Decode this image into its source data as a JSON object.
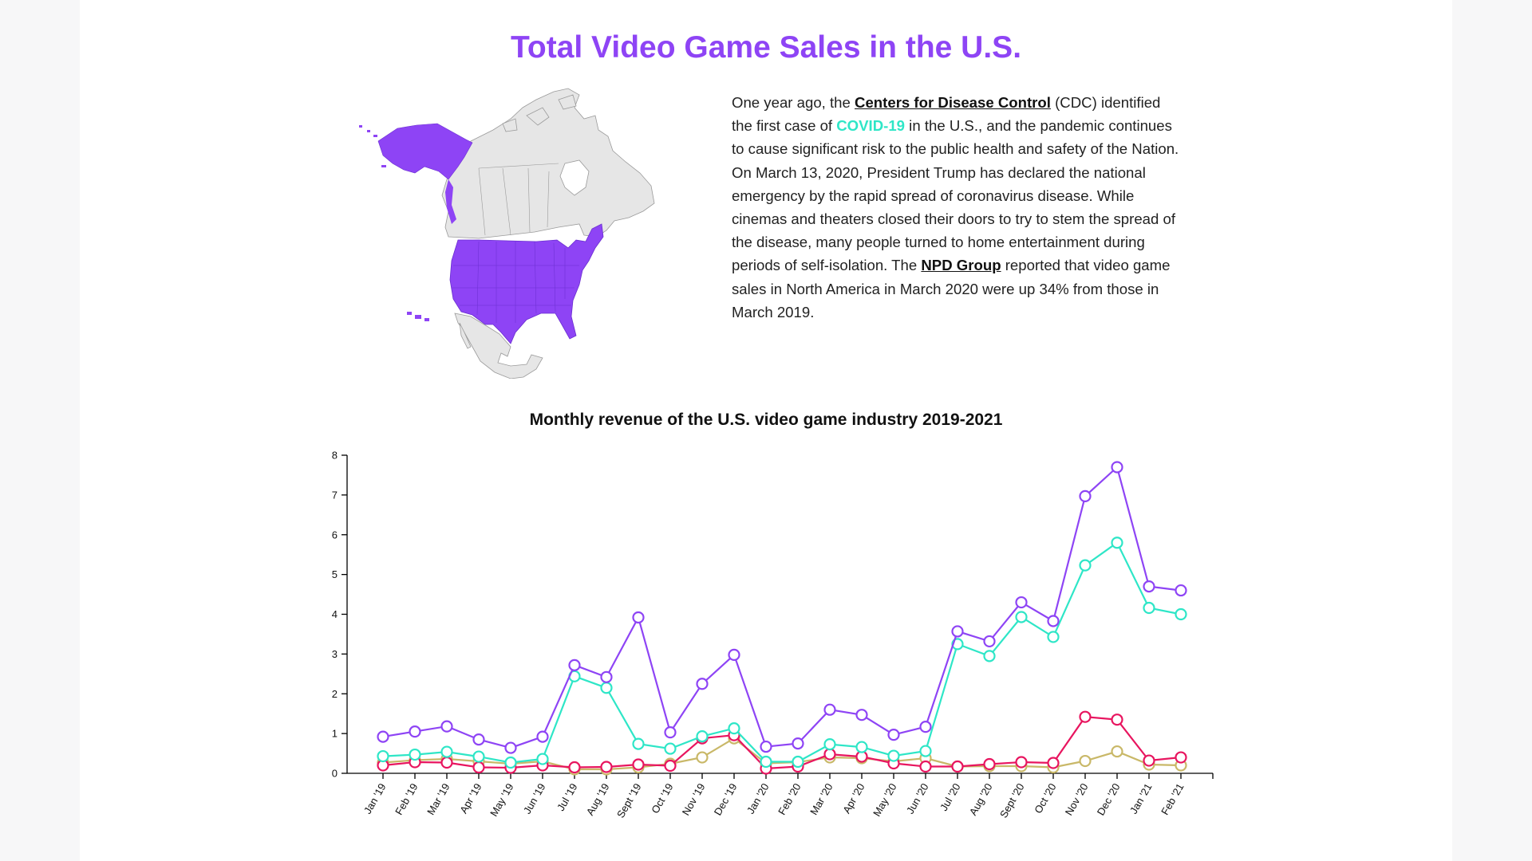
{
  "header": {
    "title": "Total Video Game Sales in the U.S."
  },
  "intro": {
    "p1": "One year ago, the ",
    "cdc_link": "Centers for Disease Control",
    "p2": " (CDC) identified the first case of ",
    "covid": "COVID-19",
    "p3": " in the U.S., and the pandemic continues to cause significant risk to the public health and safety of the Nation. On March 13, 2020, President Trump has declared the national emergency by the rapid spread of coronavirus disease. While cinemas and theaters closed their doors to try to stem the spread of the disease, many people turned to home entertainment during periods of self-isolation. The ",
    "npd_link": "NPD Group",
    "p4": " reported that video game sales in North America in March 2020 were up 34% from those in March 2019."
  },
  "colors": {
    "accent": "#8e44f5",
    "covid": "#2ee6c7",
    "map_us": "#8e44f5",
    "map_other": "#e6e6e6"
  },
  "chart_data": {
    "type": "line",
    "title": "Monthly revenue of the U.S. video game industry 2019-2021",
    "xlabel": "",
    "ylabel": "",
    "ylim": [
      0,
      8
    ],
    "yticks": [
      "0",
      "1",
      "2",
      "3",
      "4",
      "5",
      "6",
      "7",
      "8"
    ],
    "grid": false,
    "categories": [
      "Jan '19",
      "Feb '19",
      "Mar '19",
      "Apr '19",
      "May '19",
      "Jun '19",
      "Jul '19",
      "Aug '19",
      "Sept '19",
      "Oct '19",
      "Nov '19",
      "Dec '19",
      "Jan '20",
      "Feb '20",
      "Mar '20",
      "Apr '20",
      "May '20",
      "Jun '20",
      "Jul '20",
      "Aug '20",
      "Sept '20",
      "Oct '20",
      "Nov '20",
      "Dec '20",
      "Jan '21",
      "Feb '21"
    ],
    "series": [
      {
        "color": "#8e44f5",
        "values": [
          0.92,
          1.05,
          1.18,
          0.85,
          0.64,
          0.92,
          2.72,
          2.42,
          3.92,
          1.03,
          2.25,
          2.98,
          0.67,
          0.75,
          1.6,
          1.47,
          0.97,
          1.17,
          3.57,
          3.32,
          4.3,
          3.83,
          6.97,
          7.7,
          4.7,
          4.6
        ]
      },
      {
        "color": "#2ee6c7",
        "values": [
          0.43,
          0.47,
          0.54,
          0.42,
          0.27,
          0.36,
          2.44,
          2.15,
          0.74,
          0.62,
          0.93,
          1.13,
          0.29,
          0.29,
          0.73,
          0.66,
          0.44,
          0.56,
          3.25,
          2.95,
          3.93,
          3.43,
          5.23,
          5.8,
          4.16,
          4.0
        ]
      },
      {
        "color": "#e8155f",
        "values": [
          0.2,
          0.28,
          0.27,
          0.15,
          0.14,
          0.2,
          0.15,
          0.16,
          0.22,
          0.19,
          0.88,
          0.96,
          0.12,
          0.17,
          0.48,
          0.42,
          0.25,
          0.17,
          0.17,
          0.23,
          0.28,
          0.26,
          1.42,
          1.35,
          0.32,
          0.4
        ]
      },
      {
        "color": "#c9b868",
        "values": [
          0.27,
          0.33,
          0.36,
          0.3,
          0.24,
          0.3,
          0.1,
          0.1,
          0.15,
          0.24,
          0.4,
          0.88,
          0.25,
          0.28,
          0.4,
          0.38,
          0.3,
          0.38,
          0.17,
          0.18,
          0.18,
          0.15,
          0.31,
          0.55,
          0.22,
          0.2
        ]
      }
    ]
  }
}
